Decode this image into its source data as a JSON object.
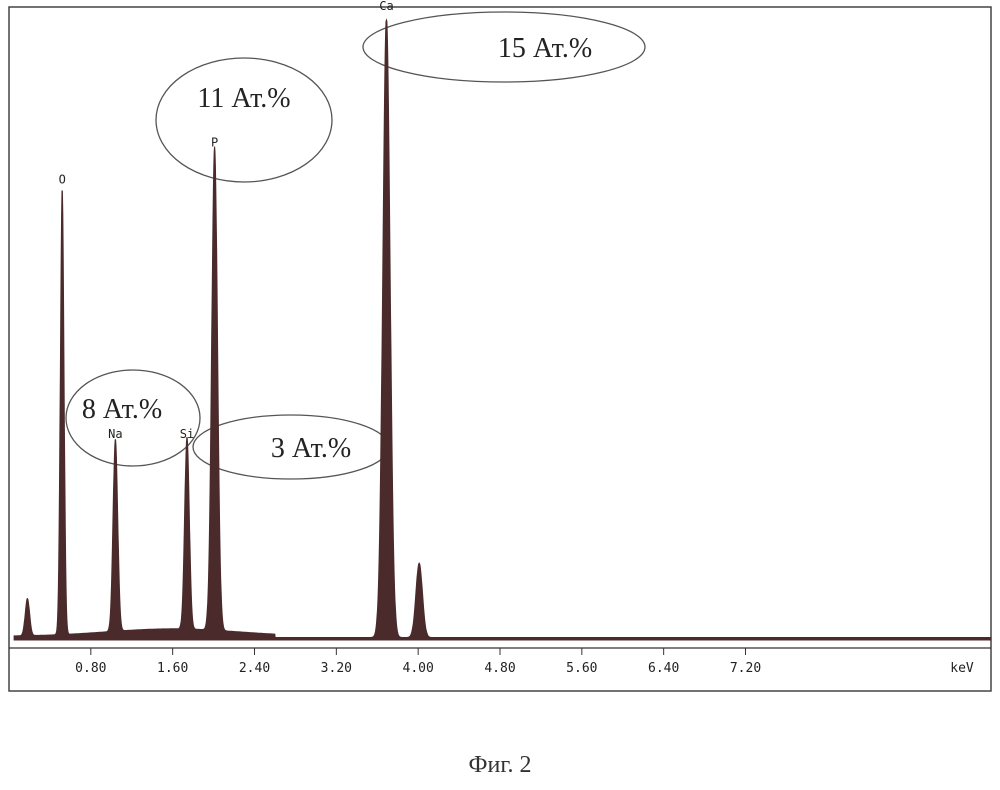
{
  "chart_data": {
    "type": "line",
    "title": "",
    "xlabel": "",
    "ylabel": "",
    "x_unit": "keV",
    "xlim": [
      0.0,
      9.6
    ],
    "ylim": [
      0,
      100
    ],
    "grid": false,
    "x_ticks": [
      "0.80",
      "1.60",
      "2.40",
      "3.20",
      "4.00",
      "4.80",
      "5.60",
      "6.40",
      "7.20"
    ],
    "fill_color": "#4a2a2a",
    "peaks": [
      {
        "label": "",
        "x": 0.18,
        "y": 6
      },
      {
        "label": "O",
        "x": 0.52,
        "y": 72
      },
      {
        "label": "Na",
        "x": 1.04,
        "y": 31
      },
      {
        "label": "Si",
        "x": 1.74,
        "y": 31
      },
      {
        "label": "P",
        "x": 2.01,
        "y": 78
      },
      {
        "label": "Ca",
        "x": 3.69,
        "y": 100
      },
      {
        "label": "",
        "x": 4.01,
        "y": 12
      }
    ],
    "annotations": [
      {
        "text": "8 Ат.%",
        "element": "Na"
      },
      {
        "text": "3 Ат.%",
        "element": "Si"
      },
      {
        "text": "11 Ат.%",
        "element": "P"
      },
      {
        "text": "15 Ат.%",
        "element": "Ca"
      }
    ]
  },
  "caption": "Фиг. 2"
}
